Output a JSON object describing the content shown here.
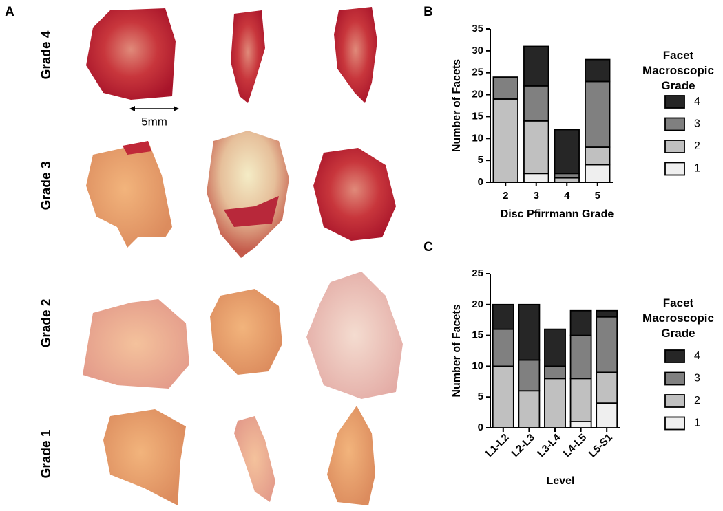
{
  "panel_a": {
    "label": "A",
    "rows": [
      "Grade 4",
      "Grade 3",
      "Grade 2",
      "Grade 1"
    ],
    "scale_bar": "5mm"
  },
  "chart_data": [
    {
      "type": "stacked_bar",
      "panel_label": "B",
      "x_label": "Disc Pfirrmann Grade",
      "y_label": "Number of Facets",
      "legend_title": "Facet Macroscopic Grade",
      "categories": [
        "2",
        "3",
        "4",
        "5"
      ],
      "series": [
        {
          "name": "1",
          "color": "#efefef",
          "values": [
            0,
            2,
            0,
            4
          ]
        },
        {
          "name": "2",
          "color": "#c0c0c0",
          "values": [
            19,
            12,
            1,
            4
          ]
        },
        {
          "name": "3",
          "color": "#808080",
          "values": [
            5,
            8,
            1,
            15
          ]
        },
        {
          "name": "4",
          "color": "#262626",
          "values": [
            0,
            9,
            10,
            5
          ]
        }
      ],
      "ylim": [
        0,
        35
      ],
      "yticks": [
        0,
        5,
        10,
        15,
        20,
        25,
        30,
        35
      ]
    },
    {
      "type": "stacked_bar",
      "panel_label": "C",
      "x_label": "Level",
      "y_label": "Number of Facets",
      "legend_title": "Facet Macroscopic Grade",
      "categories": [
        "L1-L2",
        "L2-L3",
        "L3-L4",
        "L4-L5",
        "L5-S1"
      ],
      "series": [
        {
          "name": "1",
          "color": "#efefef",
          "values": [
            0,
            0,
            0,
            1,
            4
          ]
        },
        {
          "name": "2",
          "color": "#c0c0c0",
          "values": [
            10,
            6,
            8,
            7,
            5
          ]
        },
        {
          "name": "3",
          "color": "#808080",
          "values": [
            6,
            5,
            2,
            7,
            9
          ]
        },
        {
          "name": "4",
          "color": "#262626",
          "values": [
            4,
            9,
            6,
            4,
            1
          ]
        }
      ],
      "ylim": [
        0,
        25
      ],
      "yticks": [
        0,
        5,
        10,
        15,
        20,
        25
      ]
    }
  ]
}
